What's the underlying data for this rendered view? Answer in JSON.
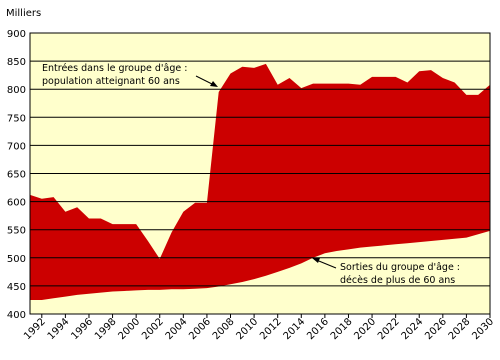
{
  "chart_data": {
    "type": "area",
    "y_label": "Milliers",
    "x": [
      1991,
      1992,
      1993,
      1994,
      1995,
      1996,
      1997,
      1998,
      1999,
      2000,
      2001,
      2002,
      2003,
      2004,
      2005,
      2006,
      2007,
      2008,
      2009,
      2010,
      2011,
      2012,
      2013,
      2014,
      2015,
      2016,
      2017,
      2018,
      2019,
      2020,
      2021,
      2022,
      2023,
      2024,
      2025,
      2026,
      2027,
      2028,
      2029,
      2030
    ],
    "series": [
      {
        "name": "Entrées",
        "color": "#cc0000",
        "values": [
          612,
          605,
          608,
          582,
          590,
          570,
          570,
          560,
          560,
          560,
          530,
          498,
          545,
          582,
          598,
          598,
          795,
          828,
          840,
          838,
          845,
          808,
          820,
          802,
          810,
          810,
          810,
          810,
          808,
          822,
          822,
          822,
          812,
          832,
          834,
          820,
          812,
          790,
          790,
          808
        ]
      },
      {
        "name": "Sorties",
        "color": "#ffffcc",
        "values": [
          425,
          425,
          428,
          431,
          434,
          436,
          438,
          440,
          441,
          442,
          443,
          443,
          444,
          444,
          445,
          446,
          449,
          453,
          457,
          462,
          468,
          475,
          482,
          490,
          500,
          508,
          512,
          515,
          518,
          520,
          522,
          524,
          526,
          528,
          530,
          532,
          534,
          536,
          542,
          548
        ]
      }
    ],
    "xlim": [
      1991,
      2030
    ],
    "xticks": [
      1992,
      1994,
      1996,
      1998,
      2000,
      2002,
      2004,
      2006,
      2008,
      2010,
      2012,
      2014,
      2016,
      2018,
      2020,
      2022,
      2024,
      2026,
      2028,
      2030
    ],
    "ylim": [
      400,
      900
    ],
    "yticks": [
      400,
      450,
      500,
      550,
      600,
      650,
      700,
      750,
      800,
      850,
      900
    ],
    "grid": true,
    "background": "#ffffcc",
    "annotations": [
      {
        "lines": [
          "Entrées dans le groupe d'âge :",
          "population atteignant 60 ans"
        ]
      },
      {
        "lines": [
          "Sorties du groupe d'âge :",
          "décès de plus de 60 ans"
        ]
      }
    ]
  }
}
